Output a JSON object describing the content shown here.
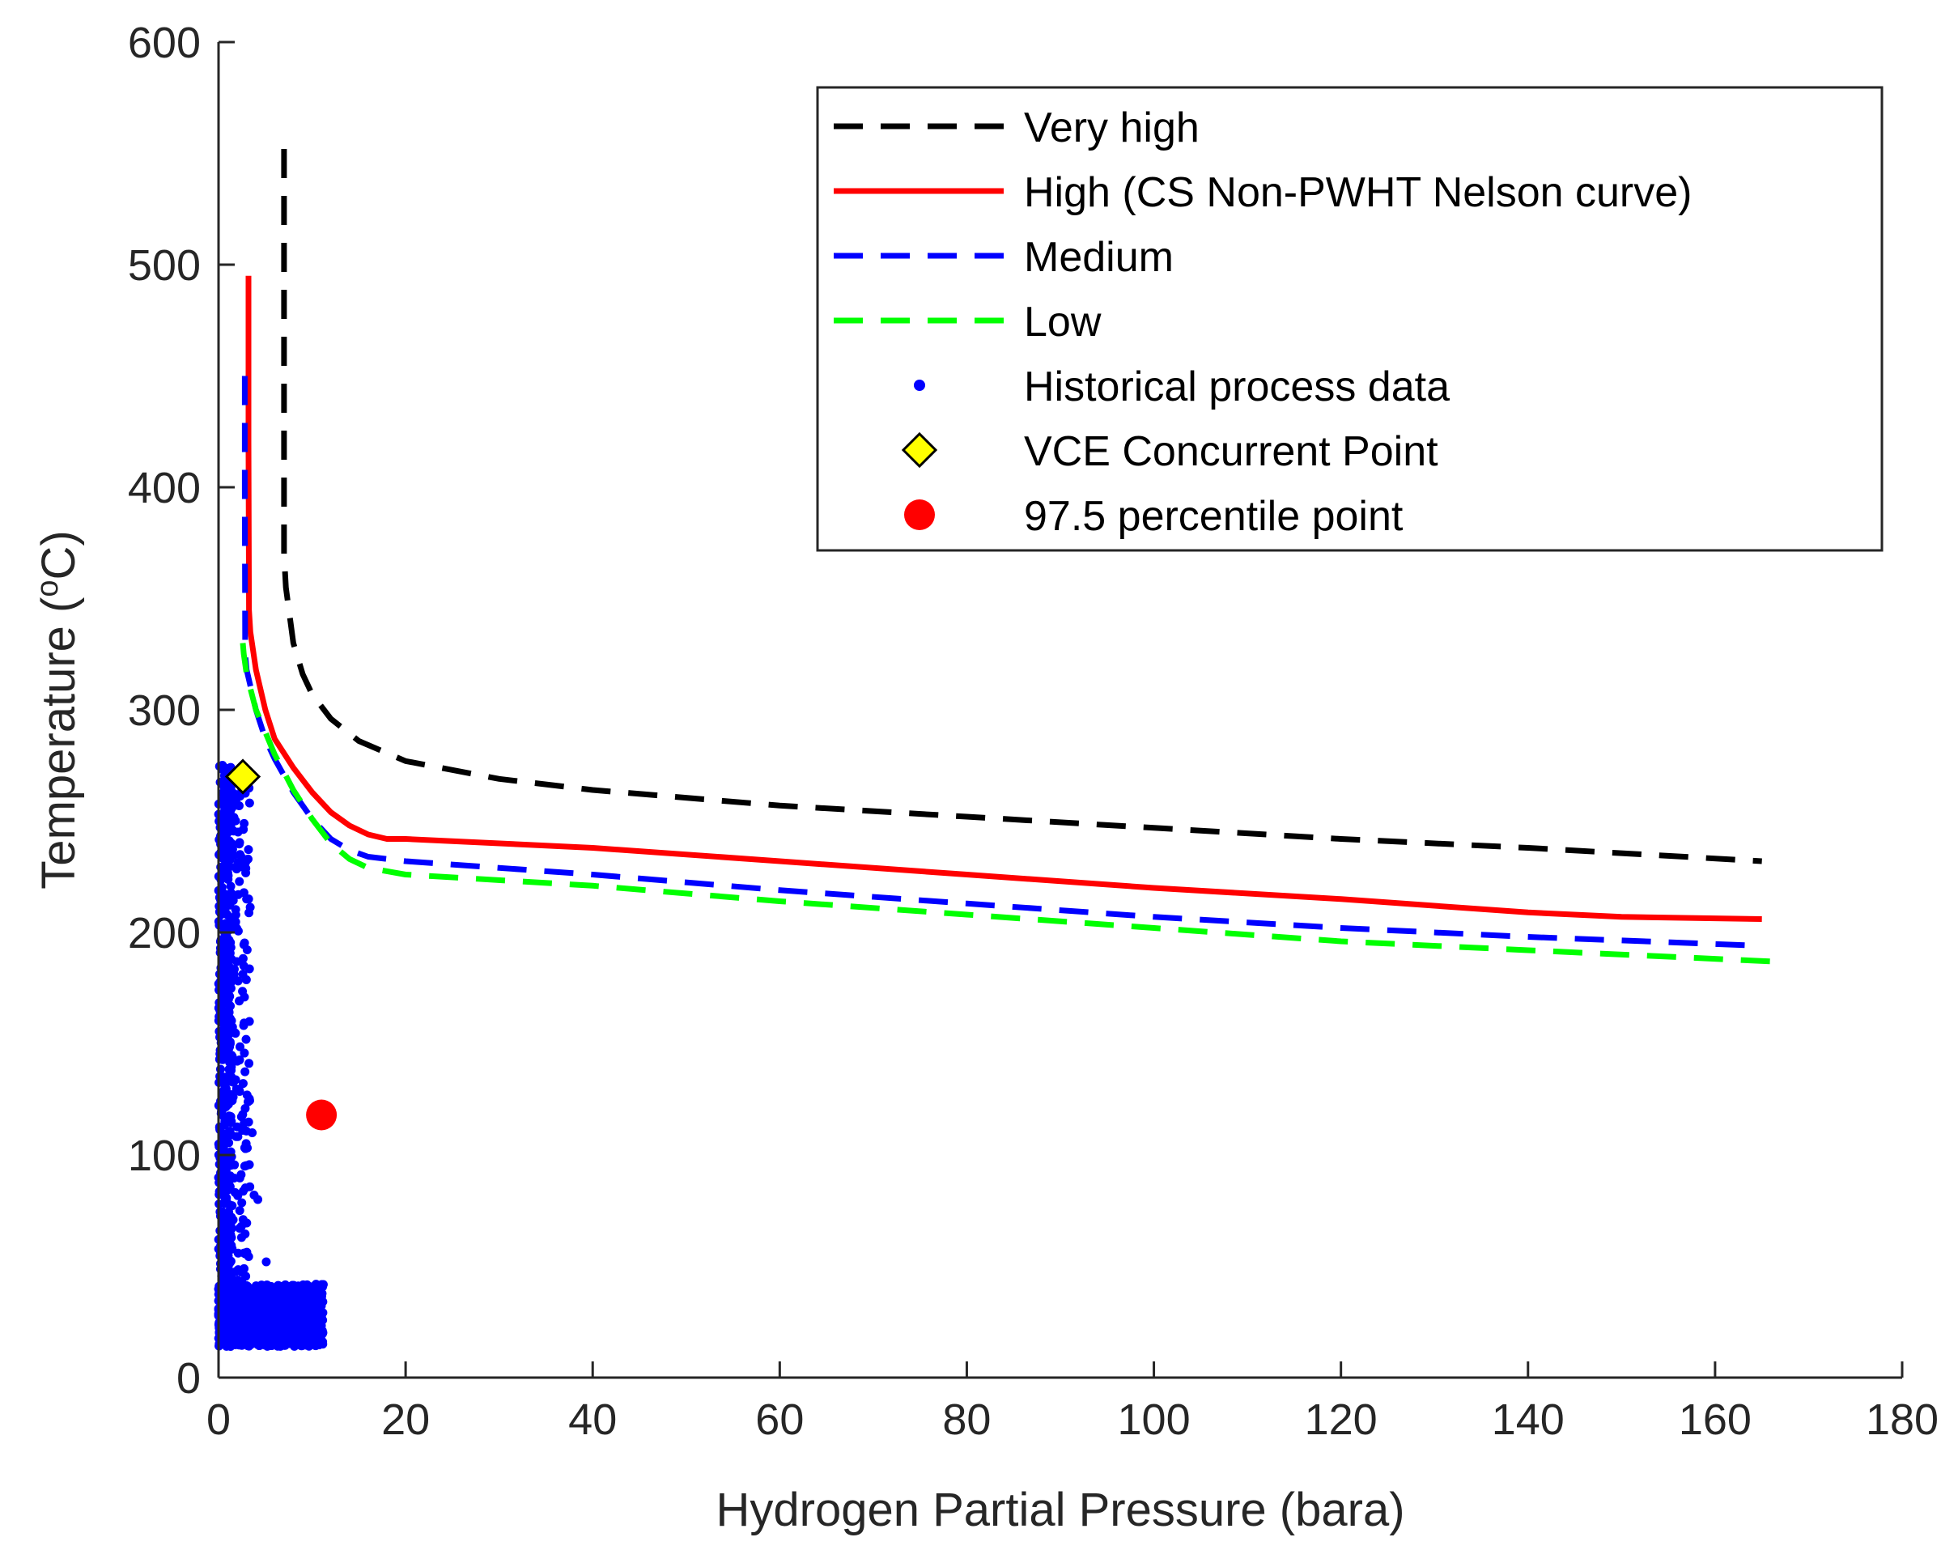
{
  "chart_data": {
    "type": "line",
    "title": "",
    "xlabel": "Hydrogen Partial Pressure (bara)",
    "ylabel": {
      "prefix": "Temperature (",
      "superscript": "o",
      "suffix": "C)"
    },
    "xlim": [
      0,
      180
    ],
    "ylim": [
      0,
      600
    ],
    "xticks": [
      0,
      20,
      40,
      60,
      80,
      100,
      120,
      140,
      160,
      180
    ],
    "yticks": [
      0,
      100,
      200,
      300,
      400,
      500,
      600
    ],
    "grid": false,
    "legend_position": "top-right",
    "series": [
      {
        "name": "Very high",
        "style": "dashed",
        "color": "#000000",
        "x": [
          7.0,
          7.0,
          7.0,
          7.2,
          8,
          9,
          10,
          12,
          15,
          20,
          30,
          40,
          60,
          80,
          100,
          120,
          140,
          165
        ],
        "y": [
          552,
          460,
          370,
          355,
          330,
          316,
          307,
          296,
          286,
          277,
          269,
          264,
          257,
          252,
          247,
          242,
          238,
          232
        ]
      },
      {
        "name": "High (CS Non-PWHT Nelson curve)",
        "style": "solid",
        "color": "#ff0000",
        "x": [
          3.2,
          3.2,
          3.25,
          3.4,
          4,
          5,
          6,
          8,
          10,
          12,
          14,
          16,
          18,
          20,
          40,
          60,
          80,
          100,
          120,
          140,
          150,
          165
        ],
        "y": [
          495,
          420,
          345,
          335,
          318,
          300,
          287,
          274,
          263,
          254,
          248,
          244,
          242,
          242,
          238,
          232,
          226,
          220,
          215,
          209,
          207,
          206
        ]
      },
      {
        "name": "Medium",
        "style": "dashed",
        "color": "#0000ff",
        "x": [
          2.8,
          2.8,
          2.85,
          3,
          4,
          5,
          6,
          8,
          10,
          12,
          14,
          16,
          20,
          40,
          60,
          80,
          100,
          120,
          140,
          165
        ],
        "y": [
          450,
          400,
          325,
          318,
          300,
          287,
          278,
          263,
          251,
          242,
          237,
          234,
          232,
          226,
          219,
          213,
          207,
          202,
          198,
          194
        ]
      },
      {
        "name": "Low",
        "style": "dashed",
        "color": "#00ff00",
        "x": [
          2.6,
          2.7,
          3,
          4,
          5,
          6,
          8,
          10,
          12,
          14,
          16,
          20,
          40,
          60,
          80,
          100,
          120,
          140,
          166
        ],
        "y": [
          330,
          325,
          316,
          300,
          290,
          280,
          264,
          251,
          240,
          233,
          229,
          226,
          221,
          214,
          208,
          202,
          196,
          192,
          187
        ]
      }
    ],
    "scatter": [
      {
        "name": "Historical process data",
        "marker": "dot",
        "color": "#0000ff",
        "description_region": {
          "x": [
            0,
            11
          ],
          "y": [
            12,
            275
          ]
        }
      },
      {
        "name": "VCE Concurrent Point",
        "marker": "diamond",
        "color": "#ffff00",
        "edge_color": "#000000",
        "x": 2.6,
        "y": 270
      },
      {
        "name": "97.5 percentile point",
        "marker": "circle",
        "color": "#ff0000",
        "x": 11,
        "y": 118
      }
    ]
  }
}
